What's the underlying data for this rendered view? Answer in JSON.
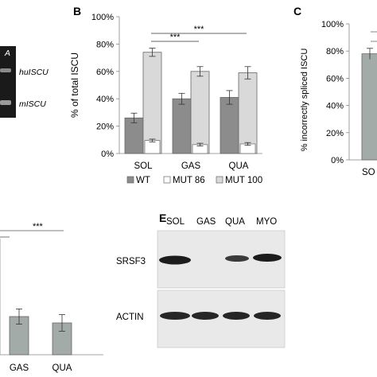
{
  "figure": {
    "panels": {
      "A": {
        "lane_label": "A",
        "band_labels": [
          "huISCU",
          "mISCU"
        ]
      },
      "B": {
        "letter": "B"
      },
      "C": {
        "letter": "C",
        "ylabel": "% incorrectly spliced ISCU",
        "visible_category": "SO"
      },
      "D": {
        "categories": [
          "GAS",
          "QUA"
        ],
        "sig_labels": [
          "***"
        ]
      },
      "E": {
        "letter": "E",
        "columns": [
          "SOL",
          "GAS",
          "QUA",
          "MYO"
        ],
        "rows": [
          "SRSF3",
          "ACTIN"
        ]
      }
    }
  },
  "chart_data": [
    {
      "panel": "B",
      "type": "bar",
      "categories": [
        "SOL",
        "GAS",
        "QUA"
      ],
      "ylabel": "% of total ISCU",
      "ylim": [
        0,
        100
      ],
      "yticks": [
        "0%",
        "20%",
        "40%",
        "60%",
        "80%",
        "100%"
      ],
      "series": [
        {
          "name": "WT",
          "values": [
            26,
            40,
            41
          ],
          "errors": [
            3.5,
            4,
            5
          ],
          "color": "#8c8c8c"
        },
        {
          "name": "MUT 86",
          "values": [
            9.5,
            6.5,
            7
          ],
          "errors": [
            1,
            1,
            1
          ],
          "color": "#ffffff"
        },
        {
          "name": "MUT 100",
          "values": [
            74,
            60,
            59
          ],
          "errors": [
            3,
            3.5,
            4.5
          ],
          "color": "#d9d9d9"
        }
      ],
      "significance": [
        "***",
        "***"
      ],
      "legend_position": "bottom"
    },
    {
      "panel": "C",
      "type": "bar",
      "categories": [
        "SO"
      ],
      "ylabel": "% incorrectly spliced ISCU",
      "ylim": [
        0,
        100
      ],
      "yticks": [
        "0%",
        "20%",
        "40%",
        "60%",
        "80%",
        "100%"
      ],
      "series": [
        {
          "values": [
            78
          ],
          "errors": [
            4
          ],
          "color": "#a3aba8"
        }
      ]
    },
    {
      "panel": "D",
      "type": "bar",
      "categories": [
        "GAS",
        "QUA"
      ],
      "series": [
        {
          "values": [
            0.6,
            0.5
          ],
          "errors": [
            0.12,
            0.13
          ],
          "color": "#a3aba8"
        }
      ],
      "significance": [
        "***"
      ]
    }
  ]
}
